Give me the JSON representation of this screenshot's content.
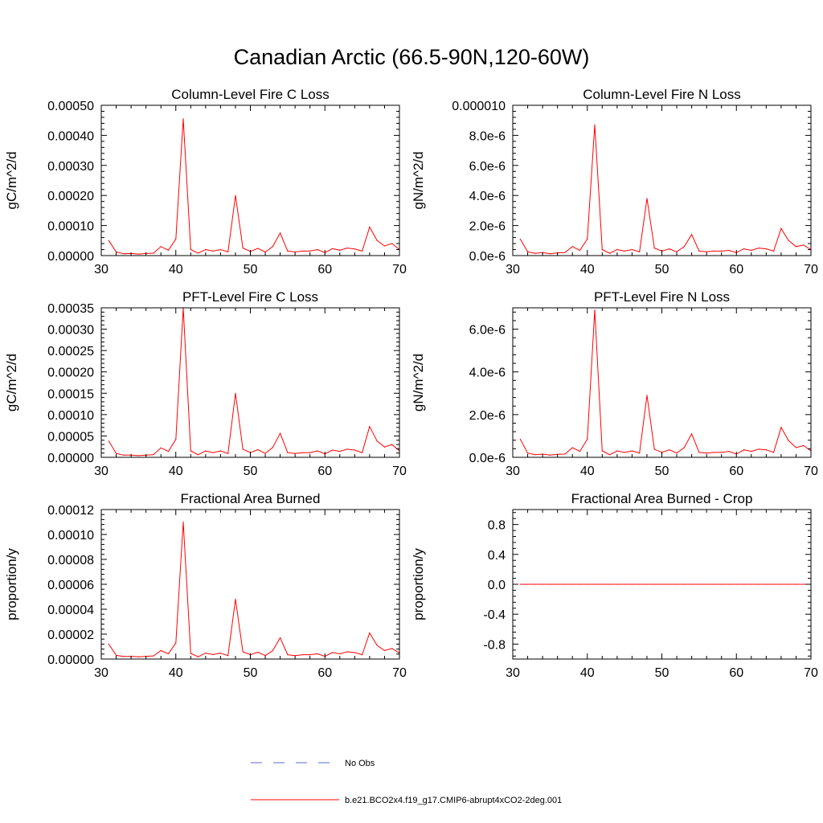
{
  "title": "Canadian Arctic (66.5-90N,120-60W)",
  "legend": {
    "items": [
      {
        "label": "No Obs",
        "color": "#5b6bd6",
        "style": "dashed"
      },
      {
        "label": "b.e21.BCO2x4.f19_g17.CMIP6-abrupt4xCO2-2deg.001",
        "color": "#ff0000",
        "style": "solid"
      }
    ]
  },
  "chart_data": [
    {
      "type": "line",
      "title": "Column-Level Fire C Loss",
      "ylabel": "gC/m^2/d",
      "xlim": [
        30,
        70
      ],
      "ylim": [
        0,
        0.0005
      ],
      "xticks": [
        30,
        40,
        50,
        60,
        70
      ],
      "yticks": [
        0,
        0.0001,
        0.0002,
        0.0003,
        0.0004,
        0.0005
      ],
      "ytick_labels": [
        "0.00000",
        "0.00010",
        "0.00020",
        "0.00030",
        "0.00040",
        "0.00050"
      ],
      "series": [
        {
          "name": "b.e21.BCO2x4.f19_g17.CMIP6-abrupt4xCO2-2deg.001",
          "color": "#ff0000",
          "x": [
            31,
            32,
            33,
            34,
            35,
            36,
            37,
            38,
            39,
            40,
            41,
            42,
            43,
            44,
            45,
            46,
            47,
            48,
            49,
            50,
            51,
            52,
            53,
            54,
            55,
            56,
            57,
            58,
            59,
            60,
            61,
            62,
            63,
            64,
            65,
            66,
            67,
            68,
            69,
            70
          ],
          "y": [
            5e-05,
            1.2e-05,
            6e-06,
            7e-06,
            5e-06,
            7e-06,
            8e-06,
            3e-05,
            1.8e-05,
            5.5e-05,
            0.000455,
            2e-05,
            8e-06,
            2e-05,
            1.5e-05,
            2e-05,
            1.2e-05,
            0.0002,
            2.5e-05,
            1.4e-05,
            2.4e-05,
            1.2e-05,
            3e-05,
            7.5e-05,
            1.5e-05,
            1.2e-05,
            1.5e-05,
            1.5e-05,
            2e-05,
            1e-05,
            2.3e-05,
            1.8e-05,
            2.5e-05,
            2.2e-05,
            1.5e-05,
            9.5e-05,
            5e-05,
            3.2e-05,
            4e-05,
            2e-05
          ]
        }
      ]
    },
    {
      "type": "line",
      "title": "Column-Level Fire N Loss",
      "ylabel": "gN/m^2/d",
      "xlim": [
        30,
        70
      ],
      "ylim": [
        0,
        1e-05
      ],
      "xticks": [
        30,
        40,
        50,
        60,
        70
      ],
      "yticks": [
        0,
        2e-06,
        4e-06,
        6e-06,
        8e-06,
        1e-05
      ],
      "ytick_labels": [
        "0.0e-6",
        "2.0e-6",
        "4.0e-6",
        "6.0e-6",
        "8.0e-6",
        "0.000010"
      ],
      "series": [
        {
          "name": "b.e21.BCO2x4.f19_g17.CMIP6-abrupt4xCO2-2deg.001",
          "color": "#ff0000",
          "x": [
            31,
            32,
            33,
            34,
            35,
            36,
            37,
            38,
            39,
            40,
            41,
            42,
            43,
            44,
            45,
            46,
            47,
            48,
            49,
            50,
            51,
            52,
            53,
            54,
            55,
            56,
            57,
            58,
            59,
            60,
            61,
            62,
            63,
            64,
            65,
            66,
            67,
            68,
            69,
            70
          ],
          "y": [
            1.1e-06,
            2.5e-07,
            1.5e-07,
            2e-07,
            1.2e-07,
            1.8e-07,
            2e-07,
            6e-07,
            3.5e-07,
            1.1e-06,
            8.7e-06,
            4e-07,
            1.5e-07,
            4e-07,
            3e-07,
            4e-07,
            2.5e-07,
            3.8e-06,
            5e-07,
            3e-07,
            4.5e-07,
            2.5e-07,
            6e-07,
            1.4e-06,
            3e-07,
            2.5e-07,
            3e-07,
            3e-07,
            3.5e-07,
            2e-07,
            4.5e-07,
            3.5e-07,
            5e-07,
            4.5e-07,
            3e-07,
            1.8e-06,
            1e-06,
            6e-07,
            7e-07,
            4e-07
          ]
        }
      ]
    },
    {
      "type": "line",
      "title": "PFT-Level Fire C Loss",
      "ylabel": "gC/m^2/d",
      "xlim": [
        30,
        70
      ],
      "ylim": [
        0,
        0.00035
      ],
      "xticks": [
        30,
        40,
        50,
        60,
        70
      ],
      "yticks": [
        0,
        5e-05,
        0.0001,
        0.00015,
        0.0002,
        0.00025,
        0.0003,
        0.00035
      ],
      "ytick_labels": [
        "0.00000",
        "0.00005",
        "0.00010",
        "0.00015",
        "0.00020",
        "0.00025",
        "0.00030",
        "0.00035"
      ],
      "series": [
        {
          "name": "b.e21.BCO2x4.f19_g17.CMIP6-abrupt4xCO2-2deg.001",
          "color": "#ff0000",
          "x": [
            31,
            32,
            33,
            34,
            35,
            36,
            37,
            38,
            39,
            40,
            41,
            42,
            43,
            44,
            45,
            46,
            47,
            48,
            49,
            50,
            51,
            52,
            53,
            54,
            55,
            56,
            57,
            58,
            59,
            60,
            61,
            62,
            63,
            64,
            65,
            66,
            67,
            68,
            69,
            70
          ],
          "y": [
            3.8e-05,
            9e-06,
            5e-06,
            5e-06,
            4e-06,
            5e-06,
            6e-06,
            2.2e-05,
            1.4e-05,
            4.2e-05,
            0.00035,
            1.5e-05,
            6e-06,
            1.5e-05,
            1.1e-05,
            1.5e-05,
            9e-06,
            0.00015,
            1.9e-05,
            1.1e-05,
            1.8e-05,
            9e-06,
            2.3e-05,
            5.6e-05,
            1.1e-05,
            9e-06,
            1.1e-05,
            1.1e-05,
            1.5e-05,
            8e-06,
            1.7e-05,
            1.4e-05,
            1.9e-05,
            1.7e-05,
            1.1e-05,
            7.2e-05,
            3.8e-05,
            2.4e-05,
            3e-05,
            1.5e-05
          ]
        }
      ]
    },
    {
      "type": "line",
      "title": "PFT-Level Fire N Loss",
      "ylabel": "gN/m^2/d",
      "xlim": [
        30,
        70
      ],
      "ylim": [
        0,
        7e-06
      ],
      "xticks": [
        30,
        40,
        50,
        60,
        70
      ],
      "yticks": [
        0,
        2e-06,
        4e-06,
        6e-06
      ],
      "ytick_labels": [
        "0.0e-6",
        "2.0e-6",
        "4.0e-6",
        "6.0e-6"
      ],
      "series": [
        {
          "name": "b.e21.BCO2x4.f19_g17.CMIP6-abrupt4xCO2-2deg.001",
          "color": "#ff0000",
          "x": [
            31,
            32,
            33,
            34,
            35,
            36,
            37,
            38,
            39,
            40,
            41,
            42,
            43,
            44,
            45,
            46,
            47,
            48,
            49,
            50,
            51,
            52,
            53,
            54,
            55,
            56,
            57,
            58,
            59,
            60,
            61,
            62,
            63,
            64,
            65,
            66,
            67,
            68,
            69,
            70
          ],
          "y": [
            8.5e-07,
            2e-07,
            1.2e-07,
            1.5e-07,
            1e-07,
            1.4e-07,
            1.5e-07,
            4.5e-07,
            2.8e-07,
            8.5e-07,
            6.9e-06,
            3e-07,
            1.2e-07,
            3e-07,
            2.3e-07,
            3e-07,
            2e-07,
            2.9e-06,
            3.8e-07,
            2.3e-07,
            3.5e-07,
            2e-07,
            4.5e-07,
            1.1e-06,
            2.3e-07,
            2e-07,
            2.3e-07,
            2.3e-07,
            2.8e-07,
            1.5e-07,
            3.5e-07,
            2.8e-07,
            3.8e-07,
            3.5e-07,
            2.3e-07,
            1.4e-06,
            7.8e-07,
            4.5e-07,
            5.5e-07,
            3e-07
          ]
        }
      ]
    },
    {
      "type": "line",
      "title": "Fractional Area Burned",
      "ylabel": "proportion/y",
      "xlim": [
        30,
        70
      ],
      "ylim": [
        0,
        0.00012
      ],
      "xticks": [
        30,
        40,
        50,
        60,
        70
      ],
      "yticks": [
        0,
        2e-05,
        4e-05,
        6e-05,
        8e-05,
        0.0001,
        0.00012
      ],
      "ytick_labels": [
        "0.00000",
        "0.00002",
        "0.00004",
        "0.00006",
        "0.00008",
        "0.00010",
        "0.00012"
      ],
      "series": [
        {
          "name": "b.e21.BCO2x4.f19_g17.CMIP6-abrupt4xCO2-2deg.001",
          "color": "#ff0000",
          "x": [
            31,
            32,
            33,
            34,
            35,
            36,
            37,
            38,
            39,
            40,
            41,
            42,
            43,
            44,
            45,
            46,
            47,
            48,
            49,
            50,
            51,
            52,
            53,
            54,
            55,
            56,
            57,
            58,
            59,
            60,
            61,
            62,
            63,
            64,
            65,
            66,
            67,
            68,
            69,
            70
          ],
          "y": [
            1.2e-05,
            3e-06,
            2e-06,
            2.2e-06,
            1.8e-06,
            2.2e-06,
            2.5e-06,
            6.8e-06,
            4.2e-06,
            1.3e-05,
            0.00011,
            4.5e-06,
            1.8e-06,
            4.8e-06,
            3.6e-06,
            4.8e-06,
            2.8e-06,
            4.8e-05,
            5.8e-06,
            3.5e-06,
            5.5e-06,
            2.8e-06,
            6.8e-06,
            1.7e-05,
            3.5e-06,
            2.8e-06,
            3.5e-06,
            3.5e-06,
            4.2e-06,
            2.2e-06,
            5.2e-06,
            4.2e-06,
            5.8e-06,
            5.2e-06,
            3.5e-06,
            2.1e-05,
            1.1e-05,
            6.8e-06,
            8.5e-06,
            4.8e-06
          ]
        }
      ]
    },
    {
      "type": "line",
      "title": "Fractional Area Burned - Crop",
      "ylabel": "proportion/y",
      "xlim": [
        30,
        70
      ],
      "ylim": [
        -1,
        1
      ],
      "xticks": [
        30,
        40,
        50,
        60,
        70
      ],
      "yticks": [
        -0.8,
        -0.4,
        0,
        0.4,
        0.8
      ],
      "ytick_labels": [
        "-0.8",
        "-0.4",
        "0.0",
        "0.4",
        "0.8"
      ],
      "series": [
        {
          "name": "b.e21.BCO2x4.f19_g17.CMIP6-abrupt4xCO2-2deg.001",
          "color": "#ff0000",
          "x": [
            31,
            32,
            33,
            34,
            35,
            36,
            37,
            38,
            39,
            40,
            41,
            42,
            43,
            44,
            45,
            46,
            47,
            48,
            49,
            50,
            51,
            52,
            53,
            54,
            55,
            56,
            57,
            58,
            59,
            60,
            61,
            62,
            63,
            64,
            65,
            66,
            67,
            68,
            69,
            70
          ],
          "y": [
            0,
            0,
            0,
            0,
            0,
            0,
            0,
            0,
            0,
            0,
            0,
            0,
            0,
            0,
            0,
            0,
            0,
            0,
            0,
            0,
            0,
            0,
            0,
            0,
            0,
            0,
            0,
            0,
            0,
            0,
            0,
            0,
            0,
            0,
            0,
            0,
            0,
            0,
            0,
            0
          ]
        }
      ]
    }
  ]
}
